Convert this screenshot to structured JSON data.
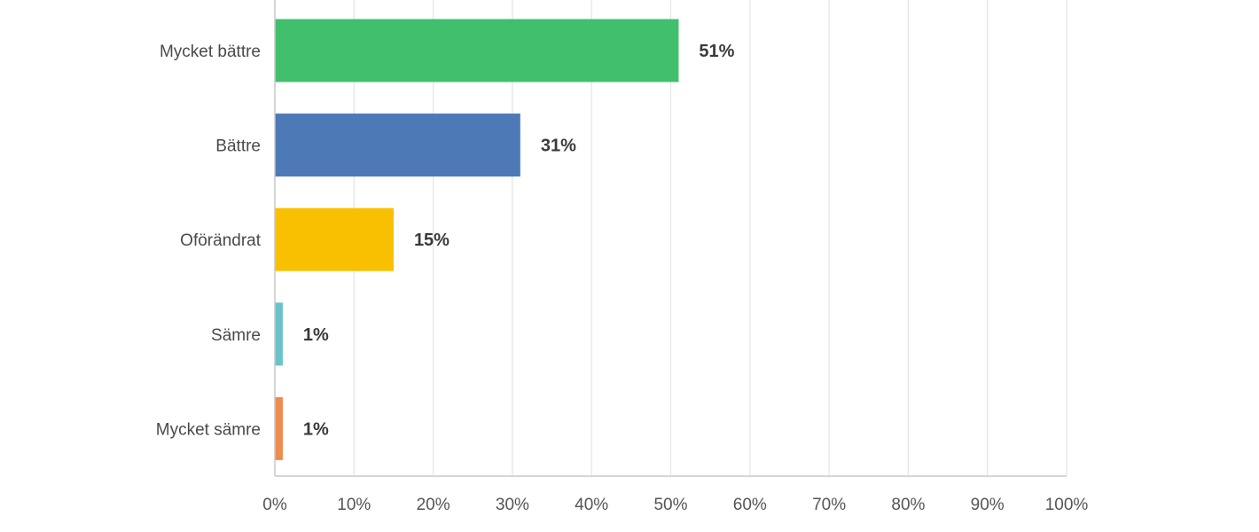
{
  "chart_data": {
    "type": "bar",
    "orientation": "horizontal",
    "categories": [
      "Mycket bättre",
      "Bättre",
      "Oförändrat",
      "Sämre",
      "Mycket sämre"
    ],
    "values": [
      51,
      31,
      15,
      1,
      1
    ],
    "value_labels": [
      "51%",
      "31%",
      "15%",
      "1%",
      "1%"
    ],
    "colors": [
      "#41bf6d",
      "#4d79b7",
      "#f8c000",
      "#6ac3c9",
      "#ef8b4f"
    ],
    "xlim": [
      0,
      100
    ],
    "xticks": [
      0,
      10,
      20,
      30,
      40,
      50,
      60,
      70,
      80,
      90,
      100
    ],
    "xtick_labels": [
      "0%",
      "10%",
      "20%",
      "30%",
      "40%",
      "50%",
      "60%",
      "70%",
      "80%",
      "90%",
      "100%"
    ],
    "grid": true,
    "legend": "none"
  }
}
